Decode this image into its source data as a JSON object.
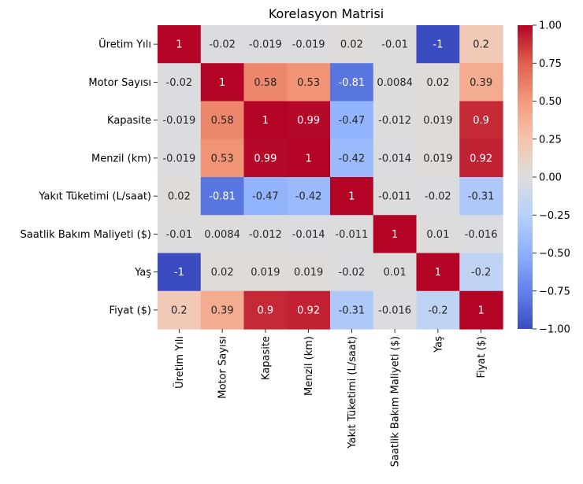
{
  "chart_data": {
    "type": "heatmap",
    "title": "Korelasyon Matrisi",
    "row_labels": [
      "Üretim Yılı",
      "Motor Sayısı",
      "Kapasite",
      "Menzil (km)",
      "Yakıt Tüketimi (L/saat)",
      "Saatlik Bakım Maliyeti ($)",
      "Yaş",
      "Fiyat ($)"
    ],
    "col_labels": [
      "Üretim Yılı",
      "Motor Sayısı",
      "Kapasite",
      "Menzil (km)",
      "Yakıt Tüketimi (L/saat)",
      "Saatlik Bakım Maliyeti ($)",
      "Yaş",
      "Fiyat ($)"
    ],
    "values": [
      [
        1,
        -0.02,
        -0.019,
        -0.019,
        0.02,
        -0.01,
        -1,
        0.2
      ],
      [
        -0.02,
        1,
        0.58,
        0.53,
        -0.81,
        0.0084,
        0.02,
        0.39
      ],
      [
        -0.019,
        0.58,
        1,
        0.99,
        -0.47,
        -0.012,
        0.019,
        0.9
      ],
      [
        -0.019,
        0.53,
        0.99,
        1,
        -0.42,
        -0.014,
        0.019,
        0.92
      ],
      [
        0.02,
        -0.81,
        -0.47,
        -0.42,
        1,
        -0.011,
        -0.02,
        -0.31
      ],
      [
        -0.01,
        0.0084,
        -0.012,
        -0.014,
        -0.011,
        1,
        0.01,
        -0.016
      ],
      [
        -1,
        0.02,
        0.019,
        0.019,
        -0.02,
        0.01,
        1,
        -0.2
      ],
      [
        0.2,
        0.39,
        0.9,
        0.92,
        -0.31,
        -0.016,
        -0.2,
        1
      ]
    ],
    "cell_text": [
      [
        "1",
        "-0.02",
        "-0.019",
        "-0.019",
        "0.02",
        "-0.01",
        "-1",
        "0.2"
      ],
      [
        "-0.02",
        "1",
        "0.58",
        "0.53",
        "-0.81",
        "0.0084",
        "0.02",
        "0.39"
      ],
      [
        "-0.019",
        "0.58",
        "1",
        "0.99",
        "-0.47",
        "-0.012",
        "0.019",
        "0.9"
      ],
      [
        "-0.019",
        "0.53",
        "0.99",
        "1",
        "-0.42",
        "-0.014",
        "0.019",
        "0.92"
      ],
      [
        "0.02",
        "-0.81",
        "-0.47",
        "-0.42",
        "1",
        "-0.011",
        "-0.02",
        "-0.31"
      ],
      [
        "-0.01",
        "0.0084",
        "-0.012",
        "-0.014",
        "-0.011",
        "1",
        "0.01",
        "-0.016"
      ],
      [
        "-1",
        "0.02",
        "0.019",
        "0.019",
        "-0.02",
        "0.01",
        "1",
        "-0.2"
      ],
      [
        "0.2",
        "0.39",
        "0.9",
        "0.92",
        "-0.31",
        "-0.016",
        "-0.2",
        "1"
      ]
    ],
    "colormap": "coolwarm",
    "vmin": -1,
    "vmax": 1,
    "colorbar_ticks": [
      -1,
      -0.75,
      -0.5,
      -0.25,
      0,
      0.25,
      0.5,
      0.75,
      1
    ],
    "colorbar_tick_labels": [
      "−1.00",
      "−0.75",
      "−0.50",
      "−0.25",
      "0.00",
      "0.25",
      "0.50",
      "0.75",
      "1.00"
    ],
    "grid": false,
    "legend": "colorbar-right"
  }
}
